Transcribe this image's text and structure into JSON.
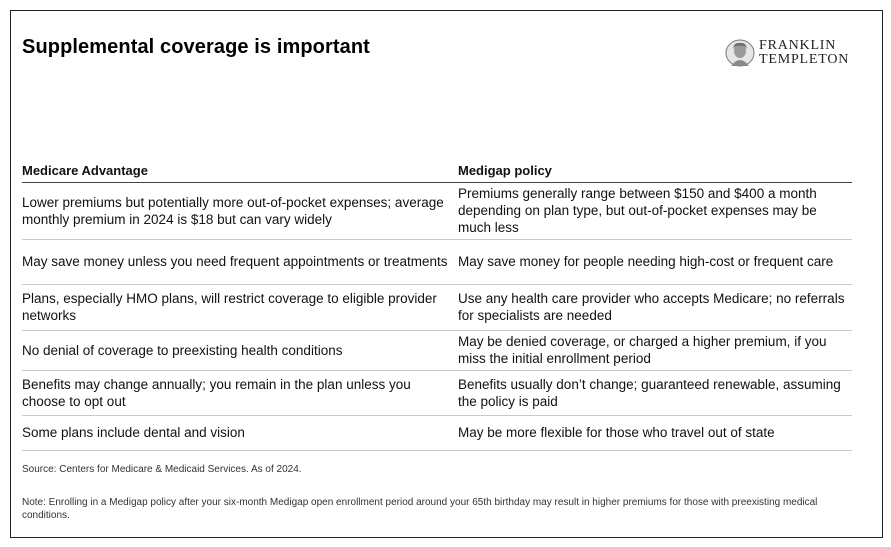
{
  "title": "Supplemental coverage is important",
  "logo": {
    "line1": "FRANKLIN",
    "line2": "TEMPLETON",
    "icon": "portrait-icon"
  },
  "table": {
    "headers": [
      "Medicare Advantage",
      "Medigap policy"
    ],
    "rows": [
      [
        "Lower premiums but potentially more out-of-pocket expenses; average monthly premium in 2024 is $18 but can vary widely",
        "Premiums generally range between $150 and $400 a month depending on plan type, but out-of-pocket expenses may be much less"
      ],
      [
        "May save money unless you need frequent appointments or treatments",
        "May save money for people needing high-cost or frequent care"
      ],
      [
        "Plans, especially HMO plans, will restrict coverage to eligible provider networks",
        "Use any health care provider who accepts Medicare; no referrals for specialists are needed"
      ],
      [
        "No denial of coverage to preexisting health conditions",
        "May be denied coverage, or charged a higher premium, if you miss the initial enrollment period"
      ],
      [
        "Benefits may change annually; you remain in the plan unless you choose to opt out",
        "Benefits usually don’t change; guaranteed renewable, assuming the policy is paid"
      ],
      [
        "Some plans include dental and vision",
        "May be more flexible for those who travel out of state"
      ]
    ]
  },
  "source": "Source: Centers for Medicare & Medicaid Services. As of 2024.",
  "note": "Note: Enrolling in a Medigap policy after your six-month Medigap open enrollment period around your 65th birthday may result in higher premiums for those with preexisting medical conditions."
}
